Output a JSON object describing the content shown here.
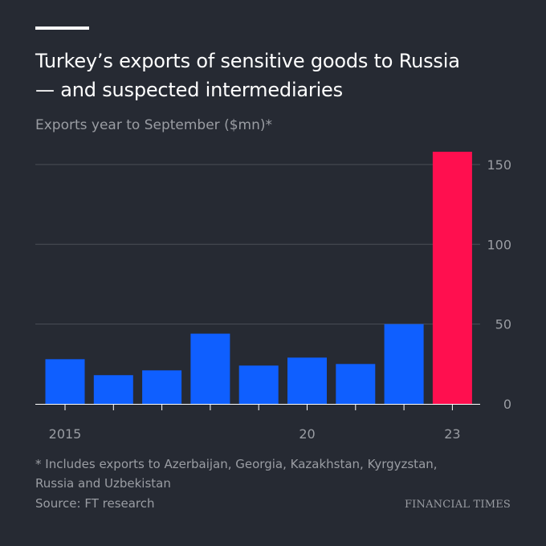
{
  "title_lines": [
    "Turkey’s exports of sensitive goods to Russia",
    "— and suspected intermediaries"
  ],
  "subtitle": "Exports year to September ($mn)*",
  "footnote_lines": [
    "* Includes exports to Azerbaijan, Georgia, Kazakhstan, Kyrgyzstan,",
    "Russia and Uzbekistan"
  ],
  "source": "Source: FT research",
  "brand": "FINANCIAL TIMES",
  "colors": {
    "background": "#262a33",
    "bar": "#0f5fff",
    "highlight": "#ff0f4f",
    "grid": "#4a4e56",
    "axis_text": "#9a9da3"
  },
  "chart_data": {
    "type": "bar",
    "categories": [
      "2015",
      "2016",
      "2017",
      "2018",
      "2019",
      "2020",
      "2021",
      "2022",
      "2023"
    ],
    "values": [
      28,
      18,
      21,
      44,
      24,
      29,
      25,
      50,
      158
    ],
    "highlight_index": 8,
    "ylim": [
      0,
      160
    ],
    "yticks": [
      0,
      50,
      100,
      150
    ],
    "xtick_labels": [
      {
        "category": "2015",
        "label": "2015"
      },
      {
        "category": "2020",
        "label": "20"
      },
      {
        "category": "2023",
        "label": "23"
      }
    ],
    "yaxis_side": "right",
    "grid": true
  }
}
